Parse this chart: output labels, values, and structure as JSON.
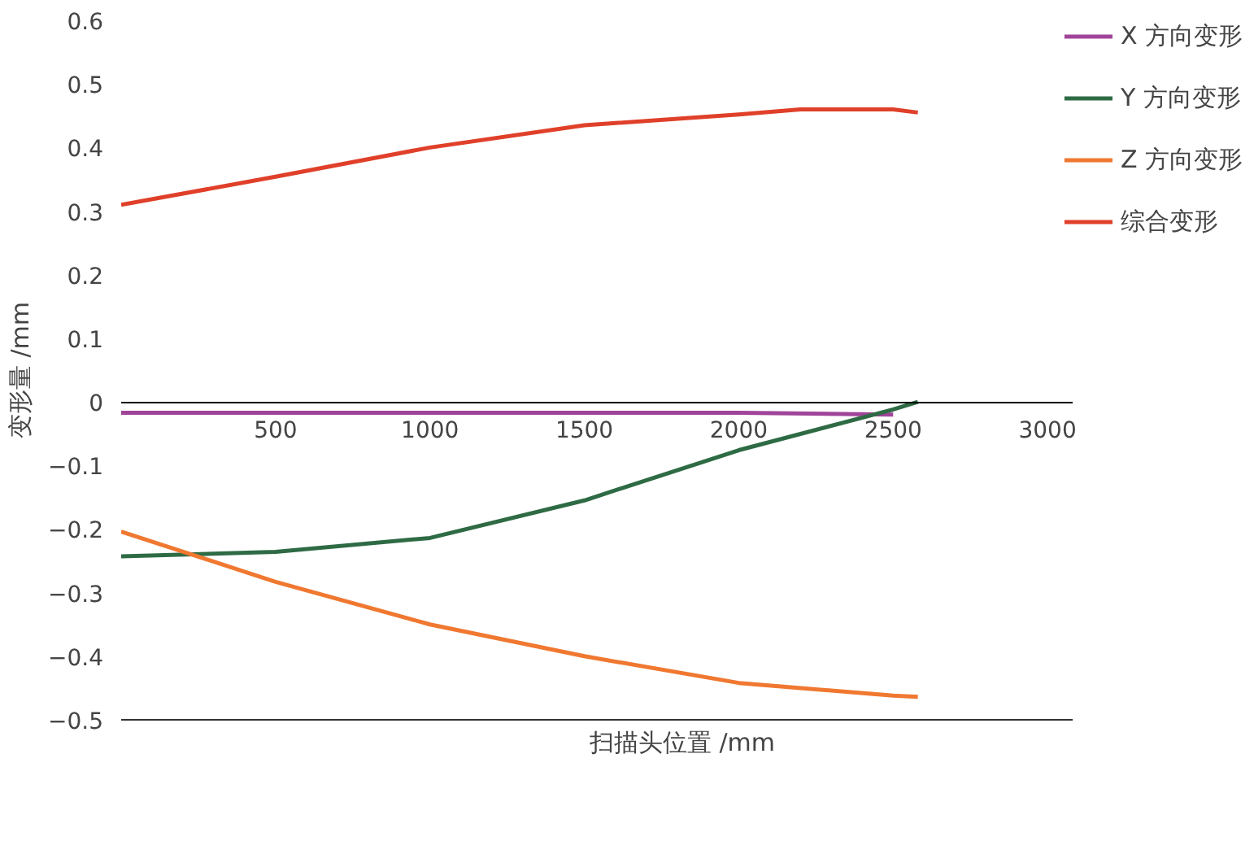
{
  "chart_data": {
    "type": "line",
    "xlabel": "扫描头位置 /mm",
    "ylabel": "变形量 /mm",
    "xlim": [
      0,
      3080
    ],
    "ylim": [
      -0.5,
      0.6
    ],
    "xticks": [
      500,
      1000,
      1500,
      2000,
      2500,
      3000
    ],
    "yticks": [
      -0.5,
      -0.4,
      -0.3,
      -0.2,
      -0.1,
      0,
      0.1,
      0.2,
      0.3,
      0.4,
      0.5,
      0.6
    ],
    "grid": false,
    "legend": "right",
    "marker": "none",
    "line_style": "solid",
    "series": [
      {
        "name": "X 方向变形",
        "color": "#a0449a",
        "x": [
          0,
          500,
          1000,
          1500,
          2000,
          2500
        ],
        "values": [
          -0.017,
          -0.017,
          -0.017,
          -0.017,
          -0.017,
          -0.02
        ]
      },
      {
        "name": "Y 方向变形",
        "color": "#2e6b45",
        "x": [
          0,
          500,
          1000,
          1500,
          2000,
          2500,
          2580
        ],
        "values": [
          -0.243,
          -0.236,
          -0.214,
          -0.155,
          -0.076,
          -0.012,
          0
        ]
      },
      {
        "name": "Z 方向变形",
        "color": "#f07830",
        "x": [
          0,
          500,
          1000,
          1500,
          2000,
          2500,
          2580
        ],
        "values": [
          -0.204,
          -0.283,
          -0.35,
          -0.4,
          -0.442,
          -0.462,
          -0.464
        ]
      },
      {
        "name": "综合变形",
        "color": "#e0402a",
        "x": [
          0,
          500,
          1000,
          1500,
          2000,
          2200,
          2500,
          2580
        ],
        "values": [
          0.31,
          0.354,
          0.4,
          0.435,
          0.452,
          0.46,
          0.46,
          0.455
        ]
      }
    ]
  }
}
